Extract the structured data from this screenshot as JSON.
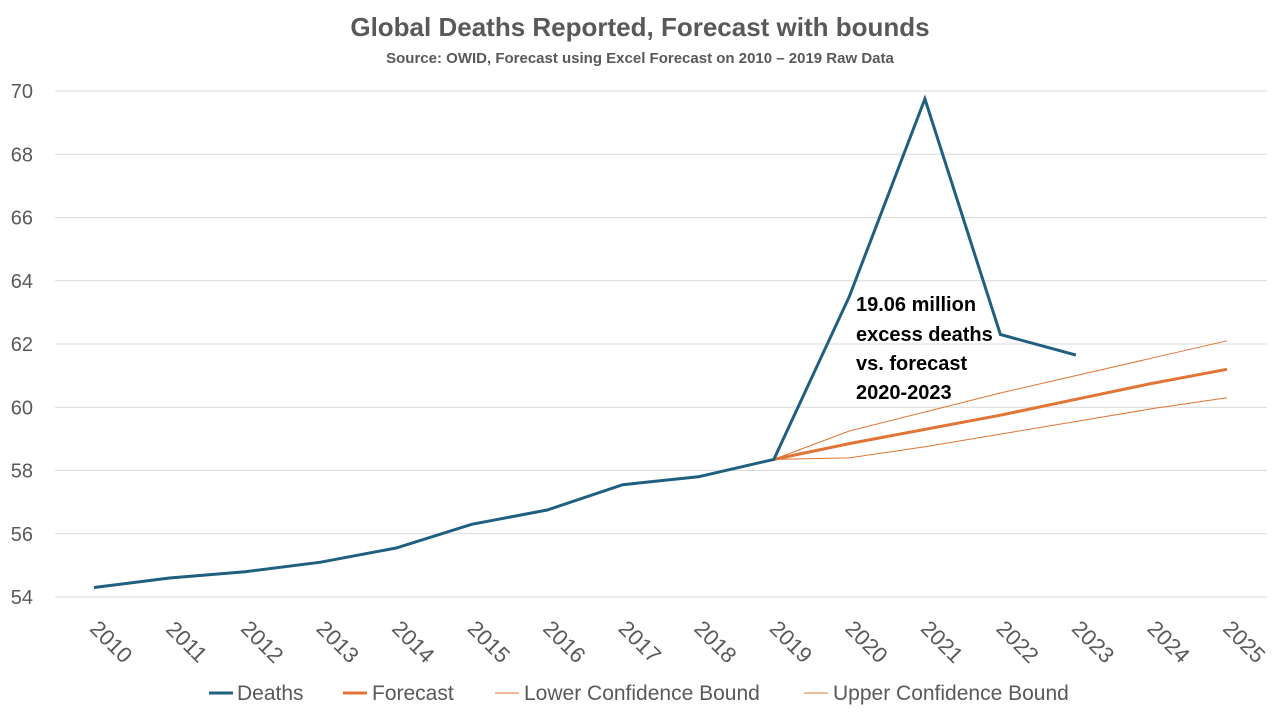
{
  "chart_data": {
    "type": "line",
    "title": "Global Deaths Reported, Forecast with bounds",
    "subtitle": "Source: OWID, Forecast using Excel Forecast on 2010 – 2019 Raw Data",
    "x": [
      "2010",
      "2011",
      "2012",
      "2013",
      "2014",
      "2015",
      "2016",
      "2017",
      "2018",
      "2019",
      "2020",
      "2021",
      "2022",
      "2023",
      "2024",
      "2025"
    ],
    "ylim": [
      54,
      70
    ],
    "yticks": [
      54,
      56,
      58,
      60,
      62,
      64,
      66,
      68,
      70
    ],
    "grid": true,
    "legend_position": "bottom",
    "series": [
      {
        "name": "Deaths",
        "color": "#1f5f7f",
        "width": 3,
        "values": [
          54.3,
          54.6,
          54.8,
          55.1,
          55.55,
          56.3,
          56.75,
          57.55,
          57.8,
          58.35,
          63.5,
          69.75,
          62.3,
          61.65,
          null,
          null
        ]
      },
      {
        "name": "Forecast",
        "color": "#e07535",
        "width": 3,
        "values": [
          null,
          null,
          null,
          null,
          null,
          null,
          null,
          null,
          null,
          58.35,
          58.85,
          59.3,
          59.75,
          60.25,
          60.75,
          61.2
        ]
      },
      {
        "name": "Lower Confidence Bound",
        "color": "#e07535",
        "width": 1,
        "values": [
          null,
          null,
          null,
          null,
          null,
          null,
          null,
          null,
          null,
          58.35,
          58.4,
          58.75,
          59.15,
          59.55,
          59.95,
          60.3
        ]
      },
      {
        "name": "Upper Confidence Bound",
        "color": "#e07535",
        "width": 1,
        "values": [
          null,
          null,
          null,
          null,
          null,
          null,
          null,
          null,
          null,
          58.35,
          59.25,
          59.85,
          60.45,
          61.0,
          61.55,
          62.1
        ]
      }
    ],
    "annotation": {
      "lines": [
        "19.06 million",
        "excess deaths",
        "vs. forecast",
        "2020-2023"
      ]
    }
  }
}
